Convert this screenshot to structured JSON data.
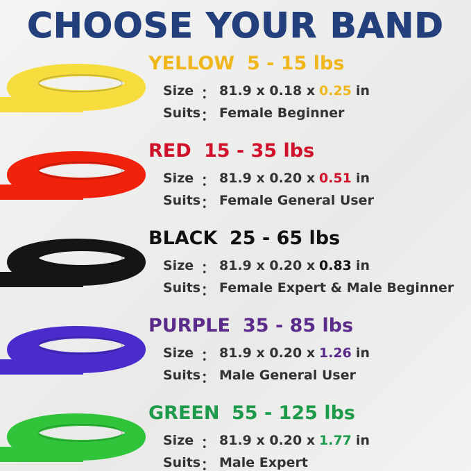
{
  "title": "CHOOSE YOUR BAND",
  "separator": "：",
  "bands": [
    {
      "name": "YELLOW",
      "range": "5 - 15 lbs",
      "text_color": "#f0b71c",
      "band_color": "#f6dc3c",
      "size_label": "Size",
      "size_prefix": "81.9 x 0.18 x",
      "size_highlight": "0.25",
      "size_unit": "in",
      "suits_label": "Suits",
      "suits": "Female Beginner"
    },
    {
      "name": "RED",
      "range": "15 - 35 lbs",
      "text_color": "#d0112b",
      "band_color": "#f0220c",
      "size_label": "Size",
      "size_prefix": "81.9 x 0.20 x",
      "size_highlight": "0.51",
      "size_unit": "in",
      "suits_label": "Suits",
      "suits": "Female General User"
    },
    {
      "name": "BLACK",
      "range": "25 - 65 lbs",
      "text_color": "#111111",
      "band_color": "#151515",
      "size_label": "Size",
      "size_prefix": "81.9 x 0.20 x",
      "size_highlight": "0.83",
      "size_unit": "in",
      "suits_label": "Suits",
      "suits": "Female Expert & Male Beginner"
    },
    {
      "name": "PURPLE",
      "range": "35 - 85 lbs",
      "text_color": "#5a2b8a",
      "band_color": "#4a2ccc",
      "size_label": "Size",
      "size_prefix": "81.9 x 0.20 x",
      "size_highlight": "1.26",
      "size_unit": "in",
      "suits_label": "Suits",
      "suits": "Male General User"
    },
    {
      "name": "GREEN",
      "range": "55 - 125 lbs",
      "text_color": "#1e9a4b",
      "band_color": "#2fc43a",
      "size_label": "Size",
      "size_prefix": "81.9 x 0.20 x",
      "size_highlight": "1.77",
      "size_unit": "in",
      "suits_label": "Suits",
      "suits": "Male Expert"
    }
  ]
}
